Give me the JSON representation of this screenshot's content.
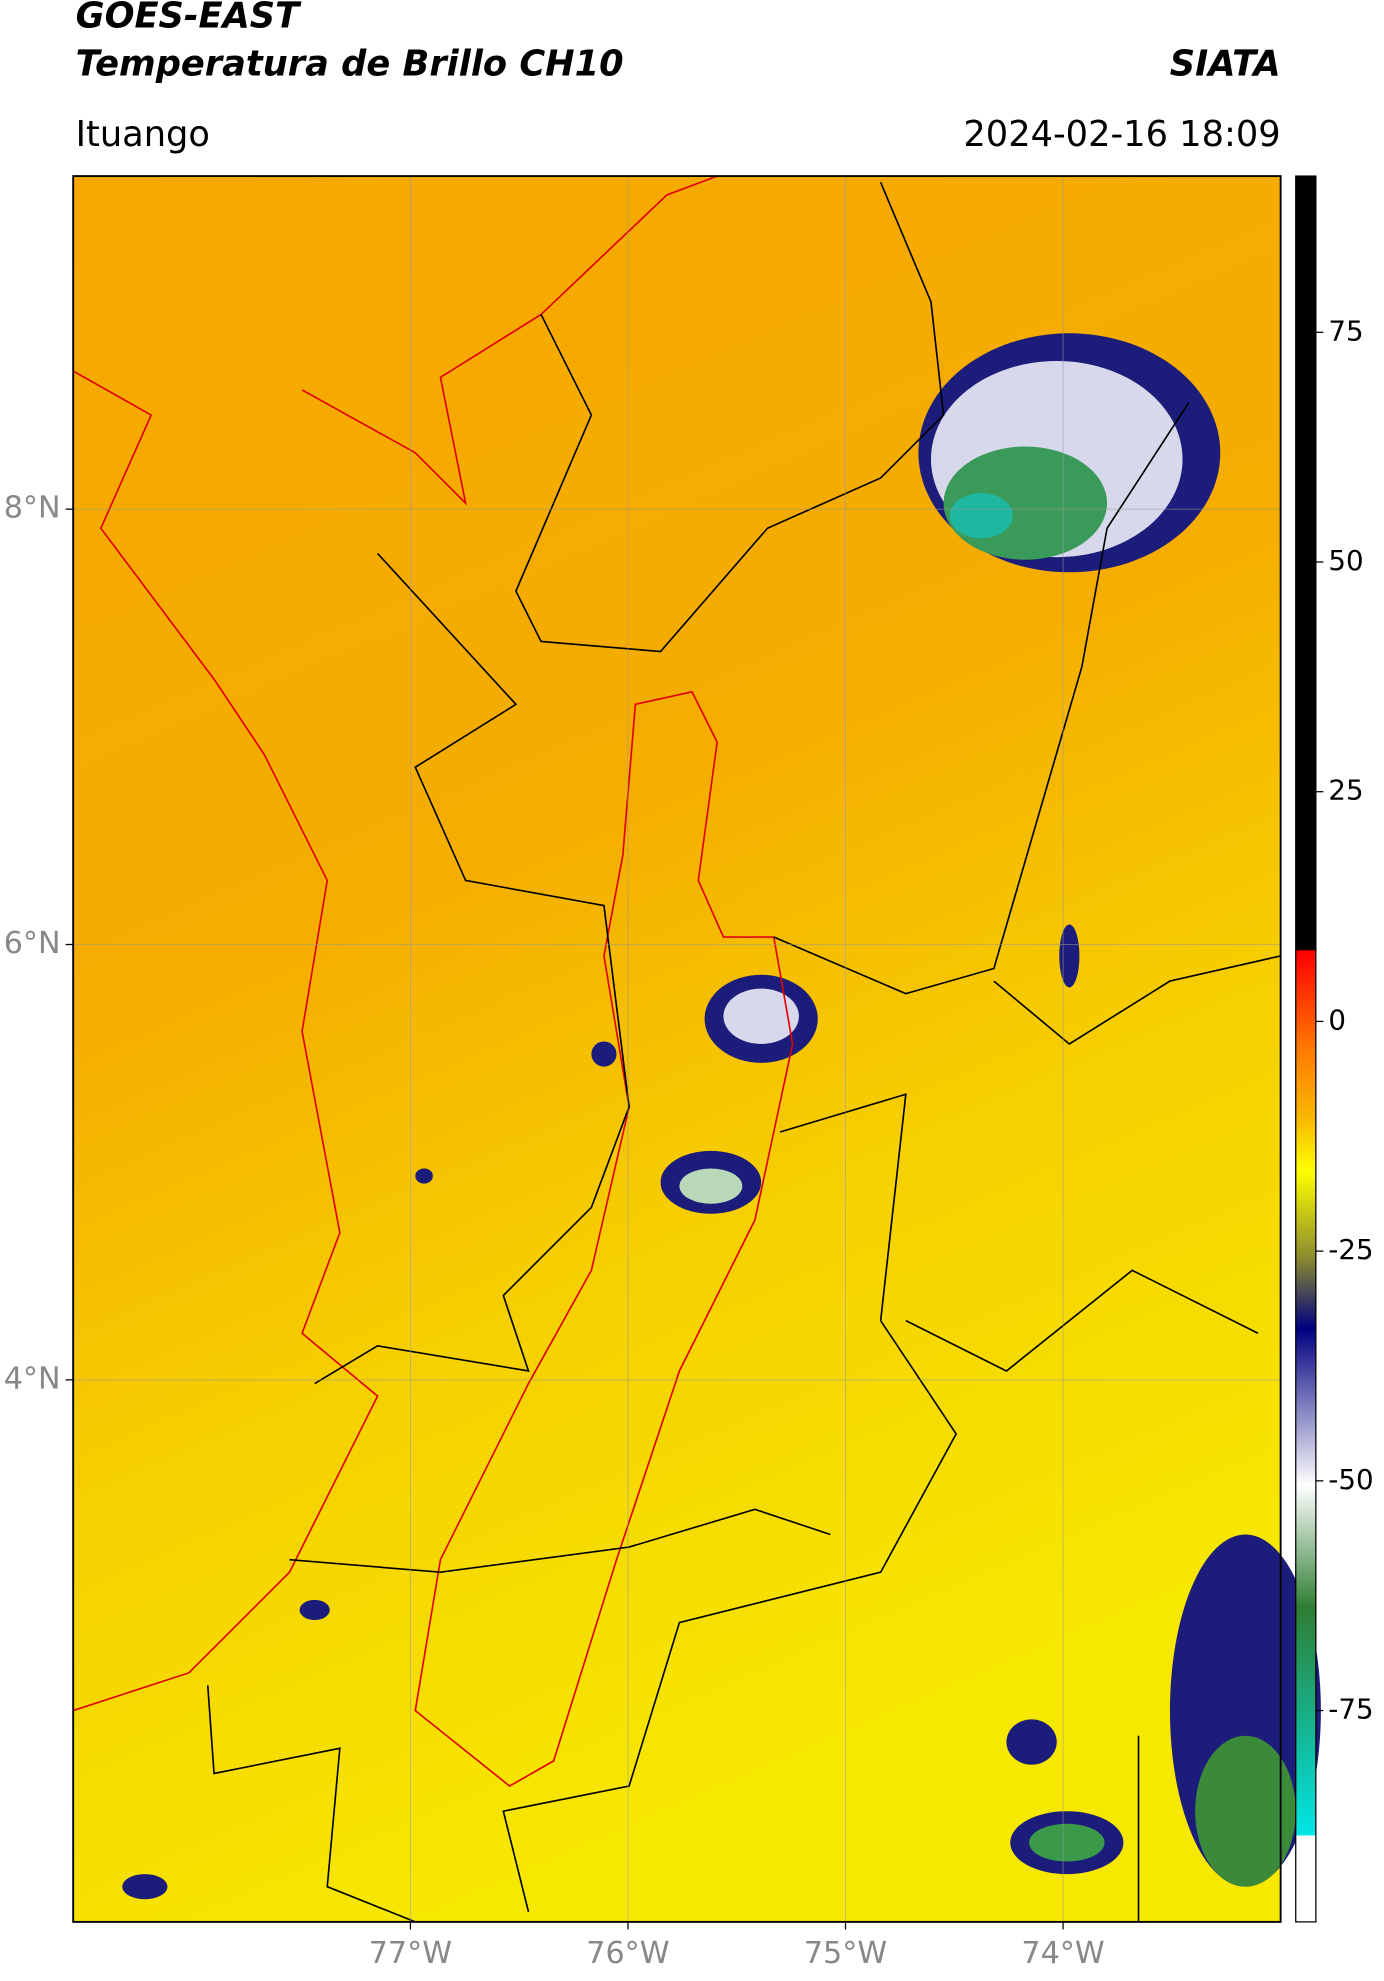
{
  "header": {
    "title_line1": "GOES-EAST",
    "title_line2": "Temperatura de Brillo CH10",
    "source": "SIATA",
    "location": "Ituango",
    "datetime": "2024-02-16 18:09"
  },
  "map": {
    "xlim": [
      -78.55,
      -73.0
    ],
    "ylim": [
      1.51,
      9.53
    ],
    "xticks": [
      {
        "value": -77,
        "label": "77°W"
      },
      {
        "value": -76,
        "label": "76°W"
      },
      {
        "value": -75,
        "label": "75°W"
      },
      {
        "value": -74,
        "label": "74°W"
      }
    ],
    "yticks": [
      {
        "value": 8,
        "label": "8°N"
      },
      {
        "value": 6,
        "label": "6°N"
      },
      {
        "value": 4,
        "label": "4°N"
      }
    ],
    "grid": true
  },
  "colorbar": {
    "lim": [
      -98,
      92
    ],
    "ticks": [
      75,
      50,
      25,
      0,
      -25,
      -50,
      -75
    ]
  }
}
